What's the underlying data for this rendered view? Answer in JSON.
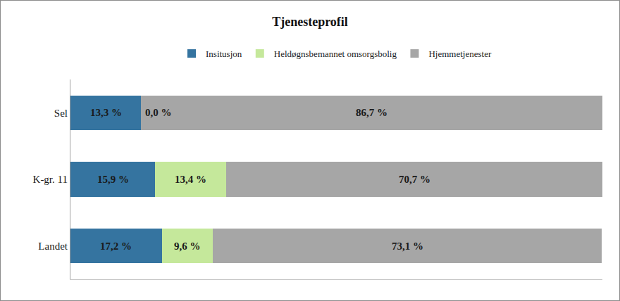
{
  "chart_data": {
    "type": "bar",
    "title": "Tjenesteprofil",
    "orientation": "horizontal",
    "stacked": true,
    "categories": [
      "Sel",
      "K-gr. 11",
      "Landet"
    ],
    "series": [
      {
        "name": "Insitusjon",
        "color": "#3574a0",
        "values": [
          13.3,
          15.9,
          17.2
        ],
        "value_labels": [
          "13,3 %",
          "15,9 %",
          "17,2 %"
        ]
      },
      {
        "name": "Heldøgnsbemannet omsorgsbolig",
        "color": "#c5e89b",
        "values": [
          0.0,
          13.4,
          9.6
        ],
        "value_labels": [
          "0,0 %",
          "13,4 %",
          "9,6 %"
        ]
      },
      {
        "name": "Hjemmetjenester",
        "color": "#a6a6a6",
        "values": [
          86.7,
          70.7,
          73.1
        ],
        "value_labels": [
          "86,7 %",
          "70,7 %",
          "73,1 %"
        ]
      }
    ],
    "xlim": [
      0,
      100
    ],
    "data_labels": true,
    "legend": "top",
    "grid": false,
    "tick_labels": "y"
  }
}
